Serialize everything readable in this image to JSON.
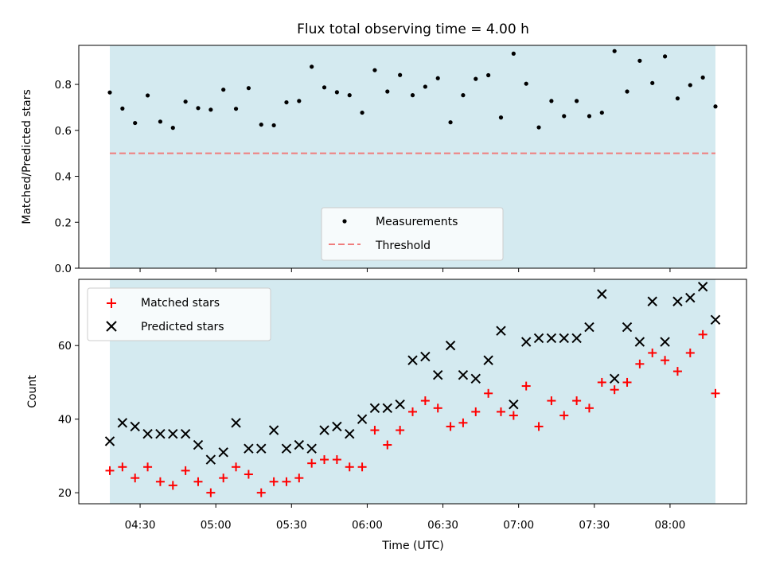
{
  "chart_data": [
    {
      "type": "scatter",
      "title": "Flux total observing time = 4.00 h",
      "xlabel": "",
      "ylabel": "Matched/Predicted stars",
      "ylim": [
        0,
        0.97
      ],
      "yticks": [
        "0.0",
        "0.2",
        "0.4",
        "0.6",
        "0.8"
      ],
      "grid": false,
      "observing_window_shaded": true,
      "legend": {
        "placement": "lower-center",
        "entries": [
          "Measurements",
          "Threshold"
        ]
      },
      "threshold": 0.5,
      "series": [
        {
          "name": "Measurements",
          "marker": "dot",
          "color": "#000000",
          "values": [
            0.765,
            0.695,
            0.632,
            0.752,
            0.638,
            0.611,
            0.725,
            0.697,
            0.69,
            0.777,
            0.694,
            0.784,
            0.625,
            0.622,
            0.722,
            0.728,
            0.877,
            0.787,
            0.766,
            0.753,
            0.677,
            0.862,
            0.769,
            0.841,
            0.753,
            0.79,
            0.827,
            0.635,
            0.753,
            0.824,
            0.84,
            0.656,
            0.934,
            0.803,
            0.613,
            0.728,
            0.662,
            0.728,
            0.662,
            0.677,
            0.945,
            0.769,
            0.903,
            0.806,
            0.922,
            0.739,
            0.797,
            0.83,
            0.704
          ]
        }
      ]
    },
    {
      "type": "scatter",
      "xlabel": "Time (UTC)",
      "ylabel": "Count",
      "ylim": [
        17,
        78
      ],
      "yticks": [
        "20",
        "40",
        "60"
      ],
      "xticks": [
        "04:30",
        "05:00",
        "05:30",
        "06:00",
        "06:30",
        "07:00",
        "07:30",
        "08:00"
      ],
      "grid": false,
      "observing_window_shaded": true,
      "legend": {
        "placement": "top-left",
        "entries": [
          "Matched stars",
          "Predicted stars"
        ]
      },
      "series": [
        {
          "name": "Matched stars",
          "marker": "plus",
          "color": "#ff0000",
          "values": [
            26,
            27,
            24,
            27,
            23,
            22,
            26,
            23,
            20,
            24,
            27,
            25,
            20,
            23,
            23,
            24,
            28,
            29,
            29,
            27,
            27,
            37,
            33,
            37,
            42,
            45,
            43,
            38,
            39,
            42,
            47,
            42,
            41,
            49,
            38,
            45,
            41,
            45,
            43,
            50,
            48,
            50,
            55,
            58,
            56,
            53,
            58,
            63,
            47
          ]
        },
        {
          "name": "Predicted stars",
          "marker": "x",
          "color": "#000000",
          "values": [
            34,
            39,
            38,
            36,
            36,
            36,
            36,
            33,
            29,
            31,
            39,
            32,
            32,
            37,
            32,
            33,
            32,
            37,
            38,
            36,
            40,
            43,
            43,
            44,
            56,
            57,
            52,
            60,
            52,
            51,
            56,
            64,
            44,
            61,
            62,
            62,
            62,
            62,
            65,
            74,
            51,
            65,
            61,
            72,
            61,
            72,
            73,
            76,
            67
          ]
        }
      ]
    }
  ],
  "colors": {
    "shade": "#d4eaf0",
    "threshold": "#f07d7d",
    "matched": "#ff0000",
    "predicted": "#000000",
    "measurement": "#000000"
  }
}
